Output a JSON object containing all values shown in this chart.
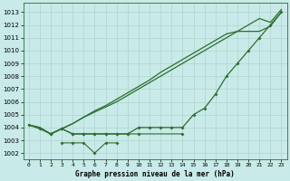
{
  "title": "Graphe pression niveau de la mer (hPa)",
  "bg_color": "#c8eae8",
  "grid_color": "#b0d4d0",
  "line_color": "#2d6e2d",
  "ylim": [
    1001.5,
    1013.7
  ],
  "yticks": [
    1002,
    1003,
    1004,
    1005,
    1006,
    1007,
    1008,
    1009,
    1010,
    1011,
    1012,
    1013
  ],
  "xlim": [
    -0.5,
    23.5
  ],
  "xticks": [
    0,
    1,
    2,
    3,
    4,
    5,
    6,
    7,
    8,
    9,
    10,
    11,
    12,
    13,
    14,
    15,
    16,
    17,
    18,
    19,
    20,
    21,
    22,
    23
  ],
  "x_labels": [
    "0",
    "1",
    "2",
    "3",
    "4",
    "5",
    "6",
    "7",
    "8",
    "9",
    "10",
    "11",
    "12",
    "13",
    "14",
    "15",
    "16",
    "17",
    "18",
    "19",
    "20",
    "21",
    "22",
    "23"
  ],
  "series_upper1": [
    1004.2,
    1004.0,
    1003.5,
    1003.9,
    1004.3,
    1004.8,
    1005.2,
    1005.6,
    1006.0,
    1006.5,
    1007.0,
    1007.5,
    1008.0,
    1008.5,
    1009.0,
    1009.5,
    1010.0,
    1010.5,
    1011.0,
    1011.5,
    1012.0,
    1012.5,
    1012.2,
    1013.2
  ],
  "series_upper2": [
    1004.2,
    1004.0,
    1003.5,
    1003.9,
    1004.3,
    1004.8,
    1005.3,
    1005.7,
    1006.2,
    1006.7,
    1007.2,
    1007.7,
    1008.3,
    1008.8,
    1009.3,
    1009.8,
    1010.3,
    1010.8,
    1011.3,
    1011.5,
    1011.5,
    1011.5,
    1011.9,
    1013.0
  ],
  "series_mid": [
    null,
    null,
    1003.5,
    1003.9,
    1003.5,
    1003.5,
    1003.5,
    1003.5,
    1003.5,
    1003.5,
    1003.5,
    null,
    null,
    null,
    1003.5,
    null,
    null,
    null,
    null,
    null,
    null,
    null,
    null,
    null
  ],
  "series_low": [
    null,
    null,
    null,
    1002.8,
    1002.8,
    1002.8,
    1002.0,
    1002.8,
    1002.8,
    null,
    null,
    null,
    null,
    null,
    null,
    null,
    null,
    null,
    null,
    null,
    null,
    null,
    null,
    null
  ],
  "series_main": [
    1004.2,
    1003.9,
    1003.5,
    1003.9,
    1003.5,
    1003.5,
    1003.5,
    1003.5,
    1003.5,
    1003.5,
    1004.0,
    1004.0,
    1004.0,
    1004.0,
    1004.0,
    1005.0,
    1005.5,
    1006.6,
    1008.0,
    1009.0,
    1010.0,
    1011.0,
    1012.0,
    1013.0
  ]
}
